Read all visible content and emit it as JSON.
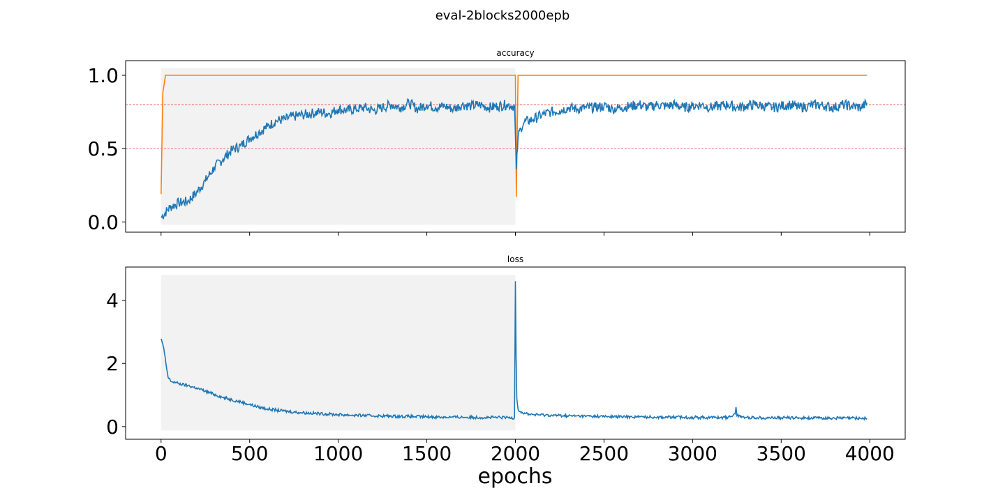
{
  "figure": {
    "suptitle": "eval-2blocks2000epb",
    "xlabel": "epochs"
  },
  "colors": {
    "blue": "#1f77b4",
    "orange": "#ff7f0e",
    "shade": "#f2f2f2",
    "refline": "#e8474a",
    "axes": "#000000"
  },
  "chart_data": [
    {
      "type": "line",
      "title": "accuracy",
      "xlabel": "",
      "ylabel": "",
      "xlim": [
        -200,
        4200
      ],
      "ylim": [
        -0.07,
        1.1
      ],
      "xticks": [
        0,
        500,
        1000,
        1500,
        2000,
        2500,
        3000,
        3500,
        4000
      ],
      "xtick_labels_visible": false,
      "yticks": [
        0.0,
        0.5,
        1.0
      ],
      "ytick_labels": [
        "0.0",
        "0.5",
        "1.0"
      ],
      "grid": false,
      "legend": "none",
      "shaded_region": {
        "x": [
          0,
          2000
        ],
        "y": [
          -0.02,
          1.05
        ]
      },
      "reference_lines": [
        0.5,
        0.8
      ],
      "series": [
        {
          "color": "#ff7f0e",
          "x": [
            0,
            10,
            25,
            40,
            2000,
            2005,
            2015,
            2025,
            3985
          ],
          "y": [
            0.19,
            0.88,
            1.0,
            1.0,
            1.0,
            0.17,
            1.0,
            1.0,
            1.0
          ]
        },
        {
          "color": "#1f77b4",
          "x": [
            0,
            50,
            100,
            150,
            200,
            250,
            300,
            350,
            400,
            450,
            500,
            550,
            600,
            650,
            700,
            750,
            800,
            850,
            900,
            950,
            1000,
            1050,
            1100,
            1150,
            1200,
            1250,
            1300,
            1350,
            1400,
            1450,
            1500,
            1550,
            1600,
            1650,
            1700,
            1750,
            1800,
            1850,
            1900,
            1950,
            1995,
            2005,
            2015,
            2030,
            2050,
            2100,
            2150,
            2200,
            2250,
            2300,
            2350,
            2400,
            2450,
            2500,
            2550,
            2600,
            2650,
            2700,
            2750,
            2800,
            2850,
            2900,
            2950,
            3000,
            3050,
            3100,
            3150,
            3200,
            3250,
            3300,
            3350,
            3400,
            3450,
            3500,
            3550,
            3600,
            3650,
            3700,
            3750,
            3800,
            3850,
            3900,
            3950,
            3985
          ],
          "y": [
            0.03,
            0.1,
            0.13,
            0.14,
            0.2,
            0.28,
            0.37,
            0.43,
            0.49,
            0.52,
            0.57,
            0.61,
            0.65,
            0.69,
            0.7,
            0.72,
            0.73,
            0.74,
            0.75,
            0.74,
            0.77,
            0.76,
            0.77,
            0.78,
            0.76,
            0.78,
            0.8,
            0.78,
            0.81,
            0.77,
            0.8,
            0.78,
            0.79,
            0.77,
            0.8,
            0.79,
            0.8,
            0.78,
            0.79,
            0.8,
            0.79,
            0.36,
            0.58,
            0.64,
            0.68,
            0.7,
            0.73,
            0.75,
            0.76,
            0.78,
            0.77,
            0.78,
            0.78,
            0.79,
            0.77,
            0.78,
            0.79,
            0.8,
            0.78,
            0.8,
            0.79,
            0.8,
            0.78,
            0.79,
            0.8,
            0.78,
            0.79,
            0.8,
            0.78,
            0.79,
            0.8,
            0.79,
            0.78,
            0.79,
            0.8,
            0.78,
            0.79,
            0.8,
            0.79,
            0.78,
            0.8,
            0.79,
            0.78,
            0.81
          ]
        }
      ]
    },
    {
      "type": "line",
      "title": "loss",
      "xlabel": "epochs",
      "ylabel": "",
      "xlim": [
        -200,
        4200
      ],
      "ylim": [
        -0.4,
        5.05
      ],
      "xticks": [
        0,
        500,
        1000,
        1500,
        2000,
        2500,
        3000,
        3500,
        4000
      ],
      "xtick_labels": [
        "0",
        "500",
        "1000",
        "1500",
        "2000",
        "2500",
        "3000",
        "3500",
        "4000"
      ],
      "yticks": [
        0,
        2,
        4
      ],
      "ytick_labels": [
        "0",
        "2",
        "4"
      ],
      "grid": false,
      "legend": "none",
      "shaded_region": {
        "x": [
          0,
          2000
        ],
        "y": [
          -0.12,
          4.8
        ]
      },
      "series": [
        {
          "color": "#1f77b4",
          "x": [
            0,
            10,
            20,
            30,
            40,
            60,
            80,
            100,
            150,
            200,
            250,
            300,
            350,
            400,
            450,
            500,
            550,
            600,
            650,
            700,
            750,
            800,
            900,
            1000,
            1100,
            1200,
            1300,
            1400,
            1500,
            1600,
            1700,
            1800,
            1900,
            1995,
            2000,
            2004,
            2008,
            2015,
            2025,
            2040,
            2060,
            2100,
            2200,
            2300,
            2400,
            2500,
            2600,
            2700,
            2800,
            2900,
            3000,
            3100,
            3200,
            3240,
            3245,
            3250,
            3300,
            3400,
            3500,
            3600,
            3700,
            3800,
            3900,
            3985
          ],
          "y": [
            2.78,
            2.6,
            2.3,
            1.9,
            1.55,
            1.42,
            1.4,
            1.36,
            1.3,
            1.22,
            1.12,
            1.02,
            0.92,
            0.85,
            0.78,
            0.7,
            0.62,
            0.56,
            0.52,
            0.49,
            0.46,
            0.44,
            0.41,
            0.38,
            0.36,
            0.34,
            0.33,
            0.32,
            0.31,
            0.3,
            0.3,
            0.29,
            0.29,
            0.28,
            4.6,
            2.2,
            0.9,
            0.55,
            0.48,
            0.44,
            0.41,
            0.38,
            0.36,
            0.34,
            0.33,
            0.32,
            0.31,
            0.31,
            0.3,
            0.3,
            0.29,
            0.29,
            0.29,
            0.4,
            0.62,
            0.35,
            0.29,
            0.28,
            0.28,
            0.28,
            0.27,
            0.27,
            0.27,
            0.26
          ]
        }
      ]
    }
  ]
}
